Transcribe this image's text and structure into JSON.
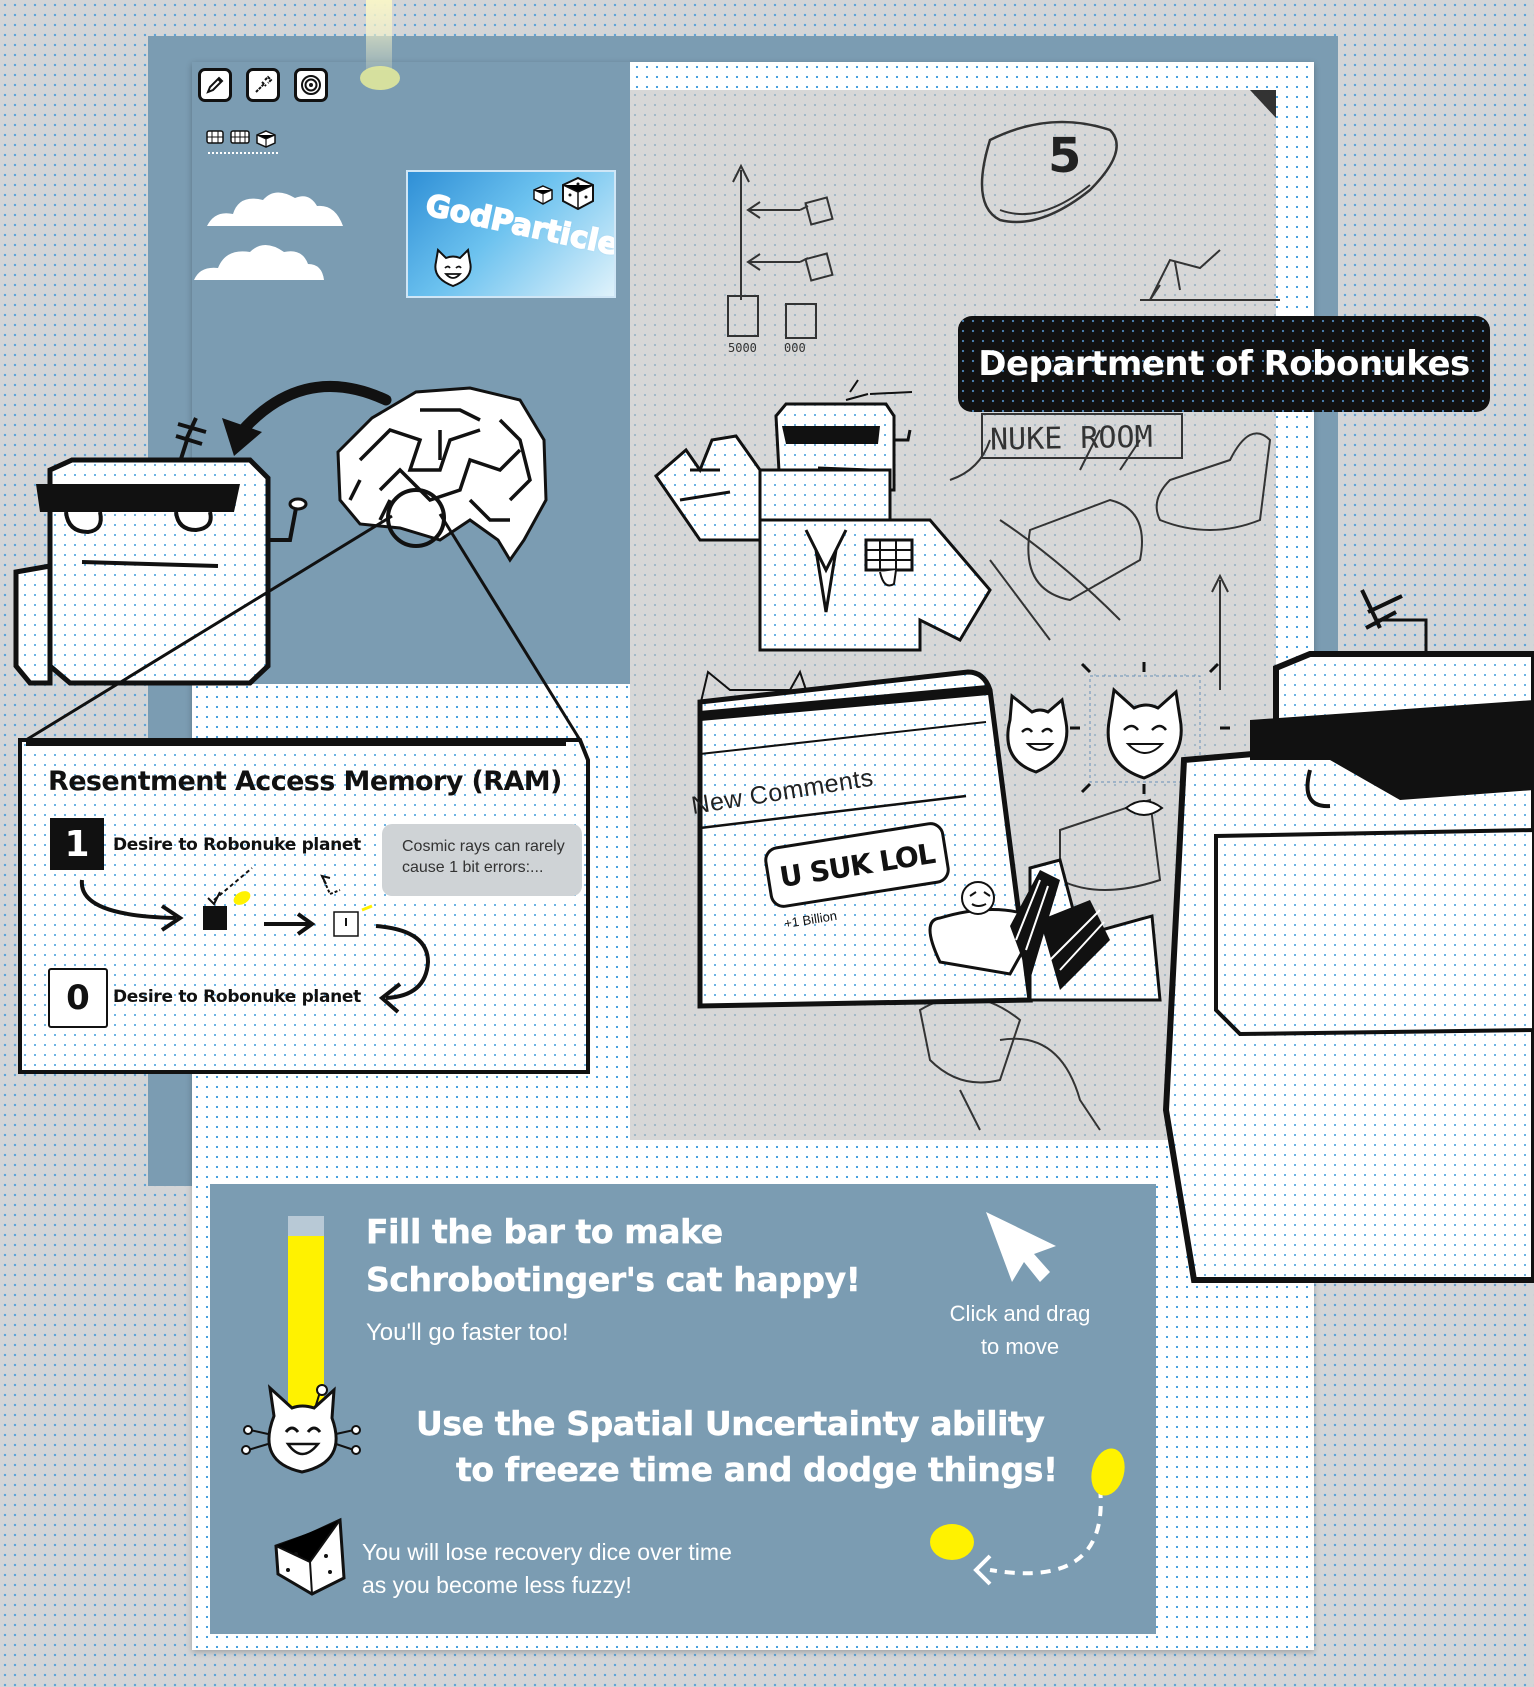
{
  "toolbar": {
    "tools": [
      {
        "icon": "pen-icon"
      },
      {
        "icon": "eyedropper-icon"
      },
      {
        "icon": "portal-icon"
      }
    ],
    "mini_icons": [
      "grid-small-icon",
      "grid-medium-icon",
      "cube-icon"
    ]
  },
  "card": {
    "logo": "GodParticle",
    "icons": [
      "small-dice-icon",
      "large-dice-icon",
      "cat-face-icon"
    ]
  },
  "scene": {
    "department_title": "Department of Robonukes",
    "nuke_room_sign": "NUKE ROOM",
    "sketch_number": "5",
    "sketch_scores": [
      "5000",
      "000"
    ]
  },
  "ram_panel": {
    "title": "Resentment Access Memory (RAM)",
    "bit_one": "1",
    "bit_one_label": "Desire to Robonuke planet",
    "bit_zero": "0",
    "bit_zero_label": "Desire to Robonuke planet",
    "tip_line1": "Cosmic rays can rarely",
    "tip_line2": "cause 1 bit errors:..."
  },
  "comments": {
    "header": "New Comments",
    "comment_text": "U SUK LOL",
    "likes": "+1 Billion"
  },
  "tutorial": {
    "fill_bar_line1": "Fill the bar to make",
    "fill_bar_line2": "Schrobotinger's cat happy!",
    "fill_bar_sub": "You'll go faster too!",
    "drag_line1": "Click and drag",
    "drag_line2": "to move",
    "spatial_line1": "Use the Spatial Uncertainty ability",
    "spatial_line2": "to freeze time and dodge things!",
    "dice_line1": "You will lose recovery dice over time",
    "dice_line2": "as you become less fuzzy!",
    "happiness_fill": 0.9
  },
  "colors": {
    "panel_blue": "#7b9cb2",
    "accent_yellow": "#fff200",
    "ink": "#111111",
    "paper": "#ffffff"
  }
}
